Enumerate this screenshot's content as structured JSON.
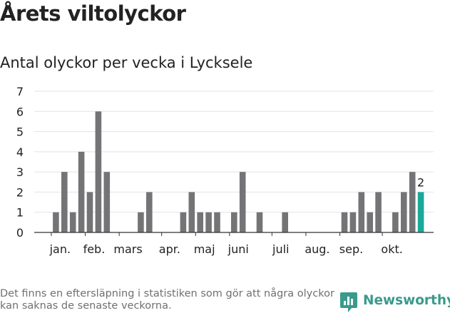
{
  "header": {
    "title": "Årets viltolyckor",
    "subtitle": "Antal olyckor per vecka i Lycksele"
  },
  "footer": {
    "note": "Det finns en eftersläpning i statistiken som gör att några olyckor kan saknas de senaste veckorna.",
    "logo_text": "Newsworthy"
  },
  "colors": {
    "bar": "#747477",
    "highlight": "#19a89a",
    "grid": "#e2e2e2",
    "axis": "#333333",
    "logo": "#3a9a8c"
  },
  "chart_data": {
    "type": "bar",
    "title": "Antal olyckor per vecka i Lycksele",
    "xlabel": "",
    "ylabel": "",
    "ylim": [
      0,
      7
    ],
    "yticks": [
      "0",
      "1",
      "2",
      "3",
      "4",
      "5",
      "6",
      "7"
    ],
    "grid": true,
    "weeks": [
      1,
      2,
      3,
      4,
      5,
      6,
      7,
      8,
      9,
      10,
      11,
      12,
      13,
      14,
      15,
      16,
      17,
      18,
      19,
      20,
      21,
      22,
      23,
      24,
      25,
      26,
      27,
      28,
      29,
      30,
      31,
      32,
      33,
      34,
      35,
      36,
      37,
      38,
      39,
      40,
      41,
      42,
      43
    ],
    "values": [
      1,
      3,
      1,
      4,
      2,
      6,
      3,
      0,
      0,
      0,
      1,
      2,
      0,
      0,
      0,
      1,
      2,
      1,
      1,
      1,
      0,
      1,
      3,
      0,
      1,
      0,
      0,
      1,
      0,
      0,
      0,
      0,
      0,
      0,
      1,
      1,
      2,
      1,
      2,
      0,
      1,
      2,
      3
    ],
    "highlight": {
      "week": 44,
      "value": 2,
      "label": "2"
    },
    "month_labels": [
      {
        "label": "jan.",
        "week": 1.5
      },
      {
        "label": "feb.",
        "week": 5.5
      },
      {
        "label": "mars",
        "week": 9.5
      },
      {
        "label": "apr.",
        "week": 14.4
      },
      {
        "label": "maj",
        "week": 18.5
      },
      {
        "label": "juni",
        "week": 22.5
      },
      {
        "label": "juli",
        "week": 27.5
      },
      {
        "label": "aug.",
        "week": 31.8
      },
      {
        "label": "sep.",
        "week": 35.8
      },
      {
        "label": "okt.",
        "week": 40.6
      }
    ],
    "month_ticks": [
      1,
      5,
      9,
      14,
      18,
      22,
      27,
      31,
      35,
      40
    ]
  }
}
